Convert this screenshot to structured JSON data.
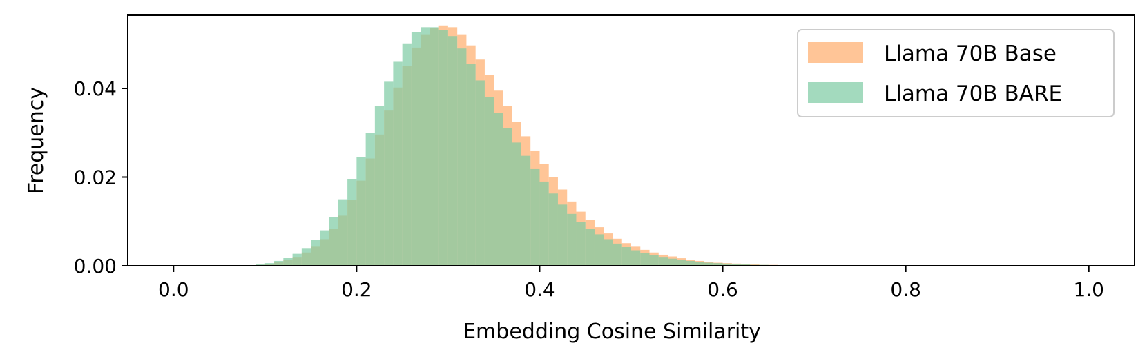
{
  "chart_data": {
    "type": "bar",
    "title": "",
    "xlabel": "Embedding Cosine Similarity",
    "ylabel": "Frequency",
    "xlim": [
      -0.05,
      1.05
    ],
    "ylim": [
      0,
      0.0565
    ],
    "xticks": [
      0.0,
      0.2,
      0.4,
      0.6,
      0.8,
      1.0
    ],
    "xtick_labels": [
      "0.0",
      "0.2",
      "0.4",
      "0.6",
      "0.8",
      "1.0"
    ],
    "yticks": [
      0.0,
      0.02,
      0.04
    ],
    "ytick_labels": [
      "0.00",
      "0.02",
      "0.04"
    ],
    "grid": false,
    "legend": "top-right",
    "bin_width": 0.01,
    "bin_start": 0.0,
    "series": [
      {
        "name": "Llama 70B Base",
        "color": "#ffbb85",
        "values": [
          0,
          0,
          0,
          0,
          0,
          0,
          0,
          0,
          0,
          0.0002,
          0.0004,
          0.0008,
          0.0013,
          0.002,
          0.003,
          0.0043,
          0.006,
          0.0083,
          0.0113,
          0.0149,
          0.0192,
          0.0242,
          0.0296,
          0.035,
          0.0402,
          0.045,
          0.0492,
          0.0522,
          0.0537,
          0.0542,
          0.0538,
          0.0522,
          0.0497,
          0.0465,
          0.043,
          0.0395,
          0.036,
          0.0325,
          0.0292,
          0.026,
          0.023,
          0.02,
          0.0172,
          0.0145,
          0.0122,
          0.0103,
          0.0087,
          0.0073,
          0.0061,
          0.0051,
          0.0043,
          0.0036,
          0.003,
          0.0025,
          0.0021,
          0.0017,
          0.0014,
          0.0011,
          0.0009,
          0.0007,
          0.0006,
          0.0005,
          0.0004,
          0.0003,
          0.0002,
          0.0002,
          0.0001,
          0.0001,
          0.0001,
          0.0001,
          5e-05,
          0,
          0,
          0,
          0,
          0,
          0,
          0,
          0,
          0,
          0,
          0,
          0,
          0,
          0,
          0,
          0,
          0,
          0,
          0,
          0,
          0,
          0,
          0,
          0,
          0,
          0,
          0,
          0,
          0,
          0
        ]
      },
      {
        "name": "Llama 70B BARE",
        "color": "#7ccba2",
        "values": [
          0,
          0,
          0,
          0,
          0,
          0,
          0,
          0,
          0,
          0.0003,
          0.0006,
          0.0011,
          0.0018,
          0.0027,
          0.004,
          0.0058,
          0.008,
          0.011,
          0.015,
          0.0195,
          0.0245,
          0.03,
          0.036,
          0.0415,
          0.046,
          0.05,
          0.0527,
          0.0538,
          0.0538,
          0.0532,
          0.0518,
          0.049,
          0.0455,
          0.0418,
          0.038,
          0.0345,
          0.031,
          0.0278,
          0.0248,
          0.0218,
          0.019,
          0.0163,
          0.0138,
          0.0117,
          0.0099,
          0.0084,
          0.0071,
          0.006,
          0.005,
          0.0042,
          0.0035,
          0.0029,
          0.0024,
          0.002,
          0.0016,
          0.0013,
          0.0011,
          0.0009,
          0.0007,
          0.0006,
          0.0005,
          0.0004,
          0.0003,
          0.0002,
          0.0002,
          0.0001,
          0.0001,
          0.0001,
          5e-05,
          3e-05,
          2e-05,
          0,
          0,
          0,
          0,
          0,
          0,
          0,
          0,
          0,
          0,
          0,
          0,
          0,
          0,
          0,
          0,
          0,
          0,
          0,
          0,
          0,
          0,
          0,
          0,
          0,
          0,
          0,
          0,
          0,
          0
        ]
      }
    ]
  }
}
